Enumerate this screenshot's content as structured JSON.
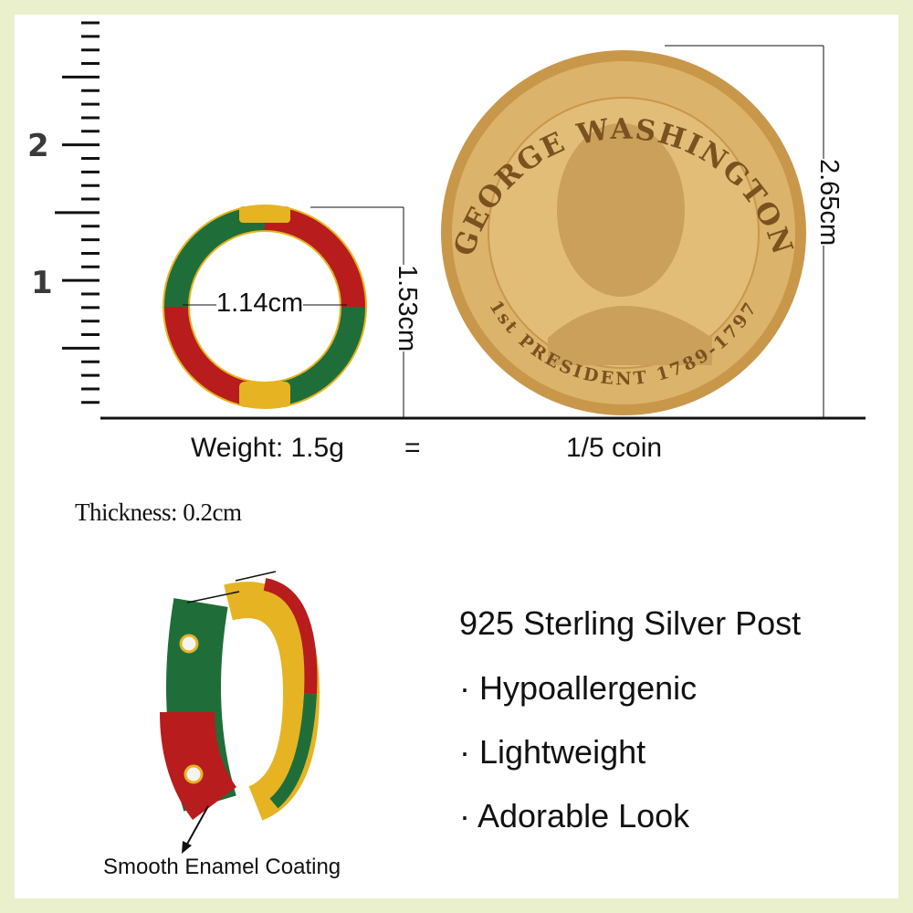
{
  "ruler": {
    "labels": [
      "2",
      "1"
    ]
  },
  "hoop_front": {
    "width_label": "1.14cm",
    "height_label": "1.53cm",
    "colors": {
      "green": "#1f6e3a",
      "red": "#b81c1c",
      "gold": "#e6b422"
    }
  },
  "coin": {
    "height_label": "2.65cm",
    "inscription_top": "GEORGE WASHINGTON",
    "inscription_bottom": "1st PRESIDENT 1789-1797",
    "color": "#d8ac5c"
  },
  "weight": {
    "label": "Weight: 1.5g",
    "equals": "=",
    "comparison": "1/5 coin"
  },
  "thickness": {
    "label": "Thickness: 0.2cm"
  },
  "features": {
    "title": "925 Sterling Silver Post",
    "items": [
      "· Hypoallergenic",
      "· Lightweight",
      "· Adorable Look"
    ]
  },
  "callout": {
    "label": "Smooth Enamel Coating"
  },
  "border_color": "#ebf0cc"
}
